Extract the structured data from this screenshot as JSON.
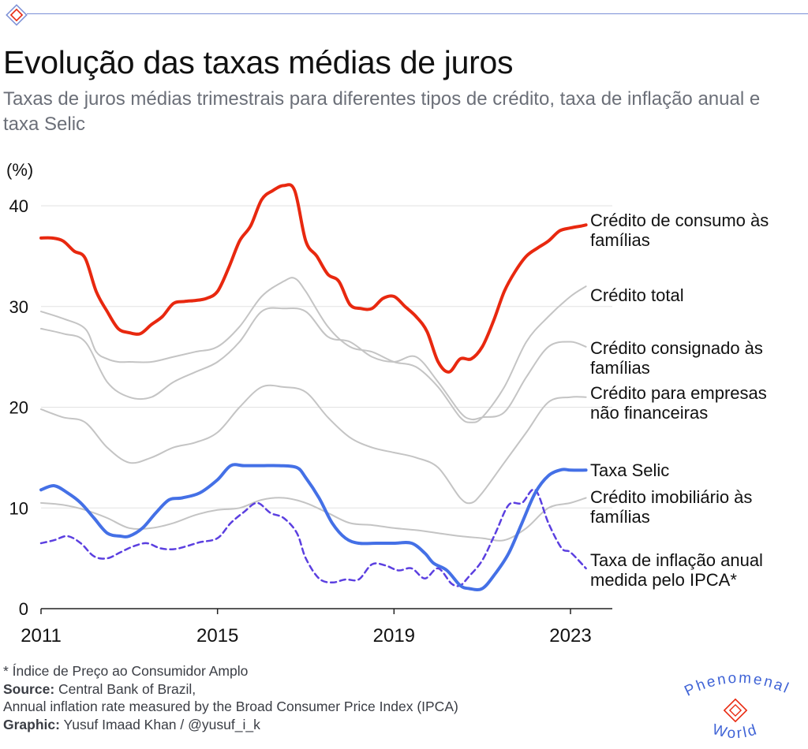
{
  "title": "Evolução das taxas médias de juros",
  "subtitle": "Taxas de juros médias trimestrais para diferentes tipos de crédito, taxa de inflação anual e taxa Selic",
  "footer": {
    "note": "* Índice de Preço ao Consumidor Amplo",
    "source_label": "Source:",
    "source_text": " Central Bank of Brazil,",
    "source_line2": "Annual inflation rate measured by the Broad Consumer Price Index (IPCA)",
    "graphic_label": "Graphic:",
    "graphic_text": " Yusuf Imaad Khan / @yusuf_i_k"
  },
  "brand": {
    "word1": "Phenomenal",
    "word2": "World"
  },
  "colors": {
    "consumer": "#e8280f",
    "selic": "#4470e6",
    "ipca": "#5b3fe0",
    "gray": "#c4c4c4",
    "grid": "#e2e2e2",
    "brand": "#3f63d6",
    "brand_red": "#e8280f"
  },
  "chart_data": {
    "type": "line",
    "ylabel": "(%)",
    "ylim": [
      0,
      42
    ],
    "xlim": [
      2011,
      2024
    ],
    "yticks": [
      "0",
      "10",
      "20",
      "30",
      "40"
    ],
    "xticks": [
      "2011",
      "2015",
      "2019",
      "2023"
    ],
    "grid": true,
    "legend": "direct labels at right",
    "series": [
      {
        "name": "Crédito de consumo às famílias",
        "style": "red",
        "x": [
          2011.0,
          2011.25,
          2011.5,
          2011.75,
          2012.0,
          2012.25,
          2012.5,
          2012.75,
          2013.0,
          2013.25,
          2013.5,
          2013.75,
          2014.0,
          2014.25,
          2014.5,
          2014.75,
          2015.0,
          2015.25,
          2015.5,
          2015.75,
          2016.0,
          2016.25,
          2016.5,
          2016.75,
          2017.0,
          2017.25,
          2017.5,
          2017.75,
          2018.0,
          2018.25,
          2018.5,
          2018.75,
          2019.0,
          2019.25,
          2019.5,
          2019.75,
          2020.0,
          2020.25,
          2020.5,
          2020.75,
          2021.0,
          2021.25,
          2021.5,
          2021.75,
          2022.0,
          2022.25,
          2022.5,
          2022.75,
          2023.0,
          2023.25,
          2023.35
        ],
        "values": [
          36.8,
          36.8,
          36.5,
          35.5,
          34.8,
          31.5,
          29.5,
          27.8,
          27.4,
          27.3,
          28.2,
          29.0,
          30.3,
          30.5,
          30.6,
          30.8,
          31.5,
          33.8,
          36.5,
          38.0,
          40.6,
          41.5,
          42.0,
          41.5,
          36.5,
          35.0,
          33.2,
          32.5,
          30.2,
          29.8,
          29.8,
          30.8,
          31.0,
          30.0,
          29.0,
          27.5,
          24.5,
          23.5,
          24.8,
          24.8,
          26.0,
          28.5,
          31.5,
          33.5,
          35.0,
          35.8,
          36.5,
          37.5,
          37.8,
          38.0,
          38.1
        ]
      },
      {
        "name": "Crédito total",
        "style": "gray",
        "x": [
          2011.0,
          2011.5,
          2012.0,
          2012.25,
          2012.5,
          2012.75,
          2013.0,
          2013.5,
          2014.0,
          2014.5,
          2015.0,
          2015.5,
          2016.0,
          2016.5,
          2016.75,
          2017.0,
          2017.5,
          2018.0,
          2018.5,
          2019.0,
          2019.5,
          2020.0,
          2020.5,
          2020.75,
          2021.0,
          2021.5,
          2022.0,
          2022.5,
          2023.0,
          2023.35
        ],
        "values": [
          29.5,
          28.8,
          27.8,
          25.5,
          24.8,
          24.5,
          24.5,
          24.5,
          25.0,
          25.5,
          26.0,
          28.0,
          31.0,
          32.5,
          32.8,
          31.5,
          28.0,
          26.0,
          25.5,
          24.5,
          24.0,
          22.0,
          19.0,
          18.5,
          19.0,
          22.0,
          26.5,
          29.0,
          31.0,
          32.0
        ]
      },
      {
        "name": "Crédito consignado às famílias",
        "style": "gray",
        "x": [
          2011.0,
          2011.5,
          2012.0,
          2012.5,
          2013.0,
          2013.5,
          2014.0,
          2014.5,
          2015.0,
          2015.5,
          2016.0,
          2016.5,
          2017.0,
          2017.5,
          2018.0,
          2018.5,
          2019.0,
          2019.5,
          2020.0,
          2020.5,
          2020.75,
          2021.0,
          2021.5,
          2022.0,
          2022.5,
          2023.0,
          2023.35
        ],
        "values": [
          27.8,
          27.3,
          26.5,
          22.5,
          21.0,
          21.0,
          22.5,
          23.5,
          24.5,
          26.5,
          29.5,
          29.8,
          29.5,
          27.0,
          26.5,
          25.0,
          24.5,
          25.0,
          22.5,
          19.5,
          18.8,
          19.0,
          19.5,
          23.0,
          26.0,
          26.5,
          26.0
        ]
      },
      {
        "name": "Crédito para empresas não financeiras",
        "style": "gray",
        "x": [
          2011.0,
          2011.5,
          2012.0,
          2012.5,
          2013.0,
          2013.5,
          2014.0,
          2014.5,
          2015.0,
          2015.5,
          2016.0,
          2016.5,
          2017.0,
          2017.5,
          2018.0,
          2018.5,
          2019.0,
          2019.5,
          2020.0,
          2020.5,
          2020.75,
          2021.0,
          2021.5,
          2022.0,
          2022.5,
          2023.0,
          2023.35
        ],
        "values": [
          19.8,
          19.0,
          18.5,
          16.0,
          14.5,
          15.0,
          16.0,
          16.5,
          17.5,
          20.0,
          22.0,
          22.0,
          21.5,
          19.0,
          17.0,
          16.0,
          15.5,
          15.0,
          14.0,
          11.0,
          10.5,
          11.5,
          14.5,
          17.5,
          20.5,
          21.0,
          21.0
        ]
      },
      {
        "name": "Crédito imobiliário às famílias",
        "style": "gray",
        "x": [
          2011.0,
          2011.5,
          2012.0,
          2012.5,
          2013.0,
          2013.5,
          2014.0,
          2014.5,
          2015.0,
          2015.5,
          2016.0,
          2016.5,
          2017.0,
          2017.5,
          2018.0,
          2018.5,
          2019.0,
          2019.5,
          2020.0,
          2020.5,
          2021.0,
          2021.5,
          2022.0,
          2022.5,
          2023.0,
          2023.35
        ],
        "values": [
          10.5,
          10.3,
          9.8,
          9.0,
          8.0,
          8.0,
          8.5,
          9.3,
          9.8,
          10.0,
          10.8,
          11.0,
          10.5,
          9.5,
          8.5,
          8.3,
          8.0,
          7.8,
          7.5,
          7.2,
          7.0,
          6.8,
          8.0,
          10.0,
          10.5,
          11.0
        ]
      },
      {
        "name": "Taxa Selic",
        "style": "blue",
        "x": [
          2011.0,
          2011.3,
          2011.6,
          2011.9,
          2012.2,
          2012.5,
          2012.8,
          2013.0,
          2013.3,
          2013.6,
          2013.9,
          2014.2,
          2014.6,
          2015.0,
          2015.3,
          2015.6,
          2016.0,
          2016.4,
          2016.8,
          2017.0,
          2017.3,
          2017.6,
          2017.9,
          2018.2,
          2018.6,
          2019.0,
          2019.4,
          2019.7,
          2019.9,
          2020.2,
          2020.5,
          2020.7,
          2021.0,
          2021.3,
          2021.6,
          2021.9,
          2022.2,
          2022.5,
          2022.8,
          2023.0,
          2023.35
        ],
        "values": [
          11.8,
          12.2,
          11.5,
          10.5,
          9.0,
          7.5,
          7.2,
          7.2,
          8.0,
          9.5,
          10.8,
          11.0,
          11.5,
          12.8,
          14.2,
          14.2,
          14.2,
          14.2,
          14.0,
          13.0,
          11.0,
          8.5,
          7.0,
          6.5,
          6.5,
          6.5,
          6.5,
          5.5,
          4.5,
          3.8,
          2.3,
          2.0,
          2.0,
          3.5,
          5.5,
          8.5,
          11.5,
          13.2,
          13.8,
          13.75,
          13.75
        ]
      },
      {
        "name": "Taxa de inflação anual medida pelo IPCA*",
        "style": "dashed",
        "x": [
          2011.0,
          2011.3,
          2011.6,
          2011.9,
          2012.2,
          2012.5,
          2012.8,
          2013.1,
          2013.4,
          2013.7,
          2014.0,
          2014.3,
          2014.6,
          2015.0,
          2015.3,
          2015.6,
          2015.9,
          2016.2,
          2016.5,
          2016.8,
          2017.0,
          2017.3,
          2017.6,
          2017.9,
          2018.2,
          2018.5,
          2018.8,
          2019.1,
          2019.4,
          2019.7,
          2020.0,
          2020.3,
          2020.5,
          2020.7,
          2021.0,
          2021.3,
          2021.6,
          2021.9,
          2022.2,
          2022.5,
          2022.8,
          2023.0,
          2023.35
        ],
        "values": [
          6.5,
          6.8,
          7.2,
          6.5,
          5.2,
          5.0,
          5.6,
          6.2,
          6.5,
          6.0,
          5.9,
          6.2,
          6.6,
          7.0,
          8.5,
          9.6,
          10.5,
          9.5,
          9.0,
          7.5,
          5.0,
          3.0,
          2.6,
          2.9,
          2.9,
          4.4,
          4.3,
          3.8,
          4.0,
          3.0,
          4.0,
          2.5,
          2.3,
          3.2,
          4.8,
          7.5,
          10.3,
          10.5,
          11.8,
          8.5,
          6.0,
          5.6,
          4.0
        ]
      }
    ],
    "labels": [
      {
        "lines": [
          "Crédito de consumo às",
          "famílias"
        ],
        "anchor_y": 38.1
      },
      {
        "lines": [
          "Crédito total"
        ],
        "anchor_y": 32.0
      },
      {
        "lines": [
          "Crédito consignado às",
          "famílias"
        ],
        "anchor_y": 26.0
      },
      {
        "lines": [
          "Crédito para empresas",
          "não financeiras"
        ],
        "anchor_y": 21.0
      },
      {
        "lines": [
          "Taxa Selic"
        ],
        "anchor_y": 15.0
      },
      {
        "lines": [
          "Crédito imobiliário às",
          "famílias"
        ],
        "anchor_y": 11.0
      },
      {
        "lines": [
          "Taxa de inflação anual",
          "medida pelo IPCA*"
        ],
        "anchor_y": 4.0
      }
    ]
  }
}
